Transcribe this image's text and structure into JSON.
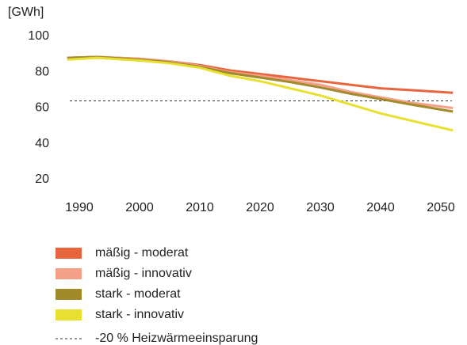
{
  "chart_data": {
    "type": "line",
    "y_label": "[GWh]",
    "x": [
      1988,
      1993,
      2000,
      2005,
      2010,
      2015,
      2020,
      2025,
      2030,
      2035,
      2040,
      2045,
      2052
    ],
    "series": [
      {
        "name": "mäßig - moderat",
        "color": "#e8643c",
        "values": [
          88,
          88.5,
          87.5,
          86,
          84,
          81,
          79,
          77,
          75,
          73,
          71,
          70,
          68.5
        ]
      },
      {
        "name": "mäßig - innovativ",
        "color": "#f4a088",
        "values": [
          88,
          88.5,
          87.5,
          86,
          83.5,
          80,
          78,
          75.5,
          73,
          69,
          66,
          63,
          60
        ]
      },
      {
        "name": "stark - moderat",
        "color": "#a08a2a",
        "values": [
          88,
          88.5,
          87,
          85.5,
          83,
          79.5,
          77,
          74.5,
          71.5,
          68,
          65,
          62,
          58
        ]
      },
      {
        "name": "stark - innovativ",
        "color": "#e8e030",
        "values": [
          87,
          88,
          86.5,
          85,
          82.5,
          78,
          75,
          71,
          67,
          62,
          57,
          53,
          47.5
        ]
      }
    ],
    "reference_line": {
      "label": "-20 % Heizwärmeeinsparung",
      "value": 64,
      "color": "#333333"
    },
    "xlim": [
      1990,
      2050
    ],
    "xticks": [
      1990,
      2000,
      2010,
      2020,
      2030,
      2040,
      2050
    ],
    "ylim": [
      20,
      100
    ],
    "yticks": [
      20,
      40,
      60,
      80,
      100
    ],
    "grid": false
  }
}
